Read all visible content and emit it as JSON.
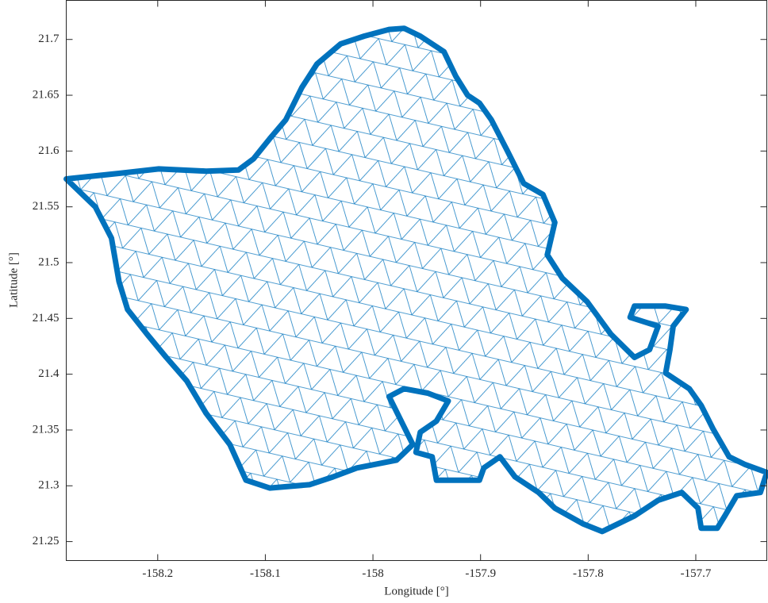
{
  "chart_data": {
    "type": "polygon",
    "xlabel": "Longitude [°]",
    "ylabel": "Latitude [°]",
    "color": "#0072bd",
    "xlim": [
      -158.285,
      -157.634
    ],
    "ylim": [
      21.233,
      21.735
    ],
    "xticks": [
      -158.2,
      -158.1,
      -158,
      -157.9,
      -157.8,
      -157.7
    ],
    "yticks": [
      21.25,
      21.3,
      21.35,
      21.4,
      21.45,
      21.5,
      21.55,
      21.6,
      21.65,
      21.7
    ],
    "x": [
      -158.285,
      -158.236,
      -158.199,
      -158.155,
      -158.125,
      -158.111,
      -158.096,
      -158.081,
      -158.066,
      -158.052,
      -158.03,
      -158.008,
      -157.985,
      -157.971,
      -157.956,
      -157.934,
      -157.923,
      -157.912,
      -157.901,
      -157.89,
      -157.875,
      -157.86,
      -157.842,
      -157.831,
      -157.838,
      -157.824,
      -157.801,
      -157.779,
      -157.757,
      -157.743,
      -157.735,
      -157.761,
      -157.757,
      -157.728,
      -157.709,
      -157.721,
      -157.724,
      -157.728,
      -157.706,
      -157.695,
      -157.684,
      -157.669,
      -157.654,
      -157.634,
      -157.64,
      -157.662,
      -157.673,
      -157.68,
      -157.695,
      -157.698,
      -157.713,
      -157.735,
      -157.757,
      -157.787,
      -157.805,
      -157.831,
      -157.846,
      -157.868,
      -157.882,
      -157.897,
      -157.901,
      -157.941,
      -157.945,
      -157.96,
      -157.956,
      -157.941,
      -157.93,
      -157.949,
      -157.971,
      -157.985,
      -157.963,
      -157.978,
      -158.015,
      -158.037,
      -158.059,
      -158.096,
      -158.118,
      -158.133,
      -158.155,
      -158.173,
      -158.192,
      -158.21,
      -158.228,
      -158.236,
      -158.243,
      -158.258
    ],
    "y": [
      21.575,
      21.58,
      21.584,
      21.582,
      21.583,
      21.593,
      21.611,
      21.628,
      21.657,
      21.678,
      21.696,
      21.703,
      21.709,
      21.71,
      21.703,
      21.689,
      21.667,
      21.65,
      21.643,
      21.628,
      21.6,
      21.571,
      21.561,
      21.536,
      21.507,
      21.486,
      21.465,
      21.436,
      21.415,
      21.422,
      21.443,
      21.451,
      21.461,
      21.461,
      21.458,
      21.443,
      21.422,
      21.401,
      21.387,
      21.372,
      21.351,
      21.326,
      21.319,
      21.312,
      21.294,
      21.291,
      21.273,
      21.262,
      21.262,
      21.28,
      21.294,
      21.287,
      21.273,
      21.259,
      21.266,
      21.28,
      21.294,
      21.308,
      21.326,
      21.316,
      21.305,
      21.305,
      21.326,
      21.33,
      21.348,
      21.358,
      21.376,
      21.383,
      21.387,
      21.38,
      21.337,
      21.323,
      21.316,
      21.308,
      21.301,
      21.298,
      21.305,
      21.337,
      21.365,
      21.394,
      21.415,
      21.436,
      21.458,
      21.483,
      21.522,
      21.55
    ]
  }
}
